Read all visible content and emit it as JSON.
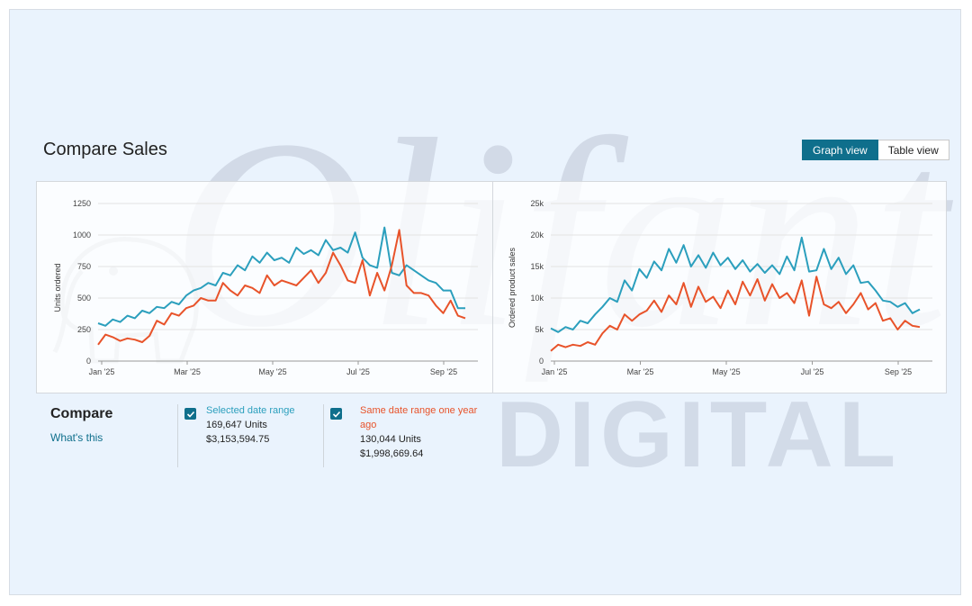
{
  "page": {
    "title": "Compare Sales"
  },
  "view_toggle": {
    "graph_label": "Graph view",
    "table_label": "Table view",
    "selected": "Graph view"
  },
  "watermark": {
    "big": "Olifant",
    "sub": "DIGITAL"
  },
  "colors": {
    "series_selected": "#2b9fbd",
    "series_prior": "#e8532a",
    "accent": "#0f6f8c"
  },
  "compare": {
    "title": "Compare",
    "whats_this": "What's this",
    "selected": {
      "label": "Selected date range",
      "units": "169,647 Units",
      "sales": "$3,153,594.75"
    },
    "prior": {
      "label": "Same date range one year ago",
      "units": "130,044 Units",
      "sales": "$1,998,669.64"
    }
  },
  "chart_data": [
    {
      "type": "line",
      "ylabel": "Units ordered",
      "y_ticks": [
        "0",
        "250",
        "500",
        "750",
        "1000",
        "1250"
      ],
      "ylim": [
        0,
        1250
      ],
      "x_ticks": [
        "Jan '25",
        "Mar '25",
        "May '25",
        "Jul '25",
        "Sep '25"
      ],
      "series": [
        {
          "name": "Selected date range",
          "values": [
            300,
            280,
            330,
            310,
            360,
            340,
            400,
            380,
            430,
            420,
            470,
            450,
            520,
            560,
            580,
            620,
            600,
            700,
            680,
            760,
            720,
            830,
            780,
            860,
            800,
            820,
            780,
            900,
            850,
            880,
            840,
            960,
            880,
            900,
            860,
            1020,
            820,
            760,
            740,
            1060,
            700,
            680,
            760,
            720,
            680,
            640,
            620,
            560,
            560,
            420,
            420
          ]
        },
        {
          "name": "Same date range one year ago",
          "values": [
            130,
            210,
            190,
            160,
            180,
            170,
            150,
            200,
            320,
            290,
            380,
            360,
            420,
            440,
            500,
            480,
            480,
            620,
            560,
            520,
            600,
            580,
            540,
            680,
            600,
            640,
            620,
            600,
            660,
            720,
            620,
            700,
            860,
            760,
            640,
            620,
            800,
            520,
            700,
            560,
            760,
            1040,
            600,
            540,
            540,
            520,
            440,
            380,
            480,
            360,
            340
          ]
        }
      ]
    },
    {
      "type": "line",
      "ylabel": "Ordered product sales",
      "y_ticks": [
        "0",
        "5k",
        "10k",
        "15k",
        "20k",
        "25k"
      ],
      "ylim": [
        0,
        25000
      ],
      "x_ticks": [
        "Jan '25",
        "Mar '25",
        "May '25",
        "Jul '25",
        "Sep '25"
      ],
      "series": [
        {
          "name": "Selected date range",
          "values": [
            5200,
            4600,
            5400,
            5000,
            6400,
            6000,
            7400,
            8600,
            10000,
            9400,
            12800,
            11200,
            14600,
            13200,
            15800,
            14400,
            17800,
            15600,
            18400,
            15000,
            16800,
            14800,
            17200,
            15200,
            16400,
            14600,
            16000,
            14200,
            15400,
            14000,
            15200,
            13800,
            16600,
            14400,
            19600,
            14200,
            14400,
            17800,
            14600,
            16400,
            13800,
            15200,
            12400,
            12600,
            11200,
            9600,
            9400,
            8600,
            9200,
            7600,
            8200
          ]
        },
        {
          "name": "Same date range one year ago",
          "values": [
            1600,
            2600,
            2200,
            2600,
            2400,
            3000,
            2600,
            4400,
            5600,
            5000,
            7400,
            6400,
            7400,
            8000,
            9600,
            7800,
            10400,
            9000,
            12400,
            8600,
            11800,
            9400,
            10200,
            8400,
            11200,
            9000,
            12600,
            10400,
            13000,
            9600,
            12200,
            10000,
            10800,
            9200,
            12800,
            7200,
            13400,
            9000,
            8400,
            9400,
            7600,
            9000,
            10800,
            8200,
            9200,
            6400,
            6800,
            5000,
            6400,
            5600,
            5400
          ]
        }
      ]
    }
  ]
}
